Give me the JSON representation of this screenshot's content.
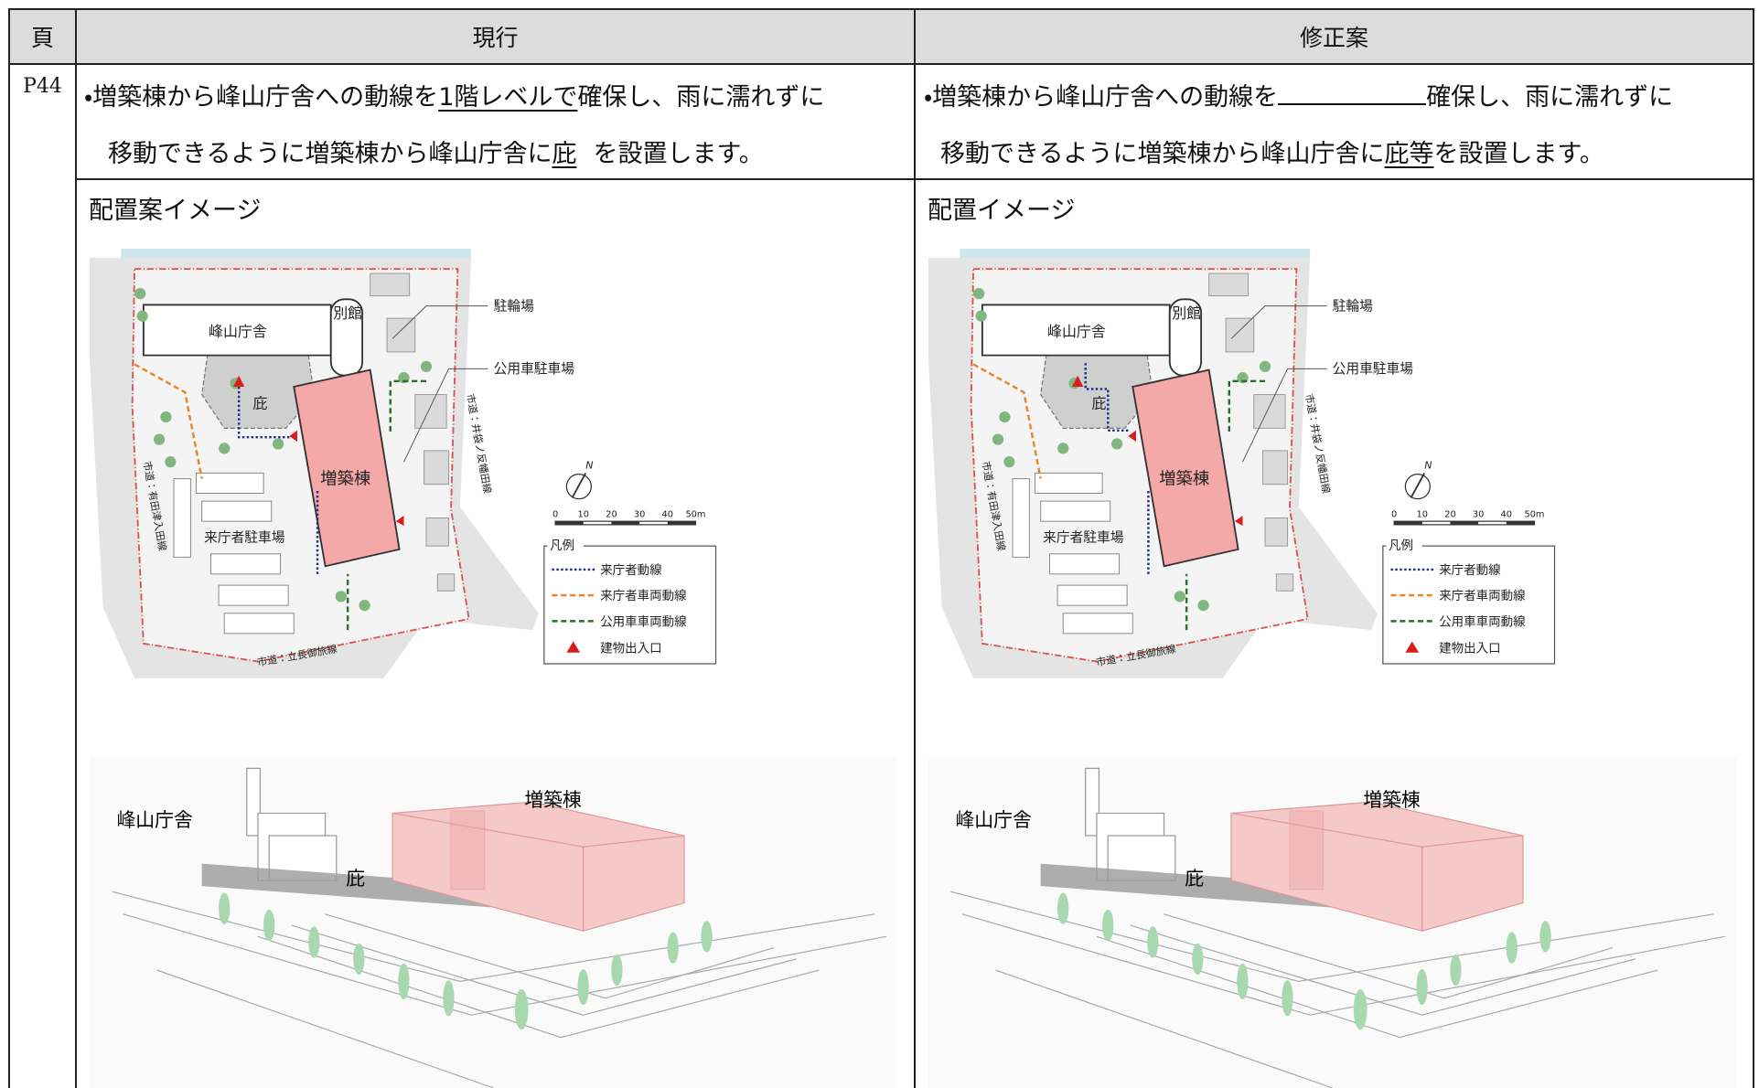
{
  "header": {
    "page": "頁",
    "current": "現行",
    "revised": "修正案"
  },
  "row": {
    "page": "P44",
    "current": {
      "line1": {
        "before": "・増築棟から峰山庁舎への動線を",
        "underlined": "1階レベルで",
        "after": "確保し、雨に濡れずに"
      },
      "line2": {
        "before": "移動できるように増築棟から峰山庁舎に",
        "underlined": "庇",
        "after": "を設置します。"
      },
      "caption": "配置案イメージ"
    },
    "revised": {
      "line1": {
        "before": "・増築棟から峰山庁舎への動線を",
        "after": "確保し、雨に濡れずに"
      },
      "line2": {
        "before": "移動できるように増築棟から峰山庁舎に",
        "underlined": "庇等",
        "after": "を設置します。"
      },
      "caption": "配置イメージ"
    }
  },
  "site_plan": {
    "labels": {
      "main_building": "峰山庁舎",
      "annex": "別館",
      "canopy": "庇",
      "extension": "増築棟",
      "visitor_parking": "来庁者駐車場",
      "bicycle_parking": "駐輪場",
      "official_parking": "公用車駐車場"
    },
    "road_labels": {
      "east": "市道：井袋ノ反幡田線",
      "west": "市道：有田津入田線",
      "south": "市道：立長御旅線"
    },
    "compass": "N",
    "scale_ticks": [
      "0",
      "10",
      "20",
      "30",
      "40",
      "50m"
    ],
    "legend": {
      "title": "凡例",
      "items": [
        "来庁者動線",
        "来庁者車両動線",
        "公用車車両動線",
        "建物出入口"
      ]
    }
  },
  "perspective": {
    "labels": {
      "main_building": "峰山庁舎",
      "extension": "増築棟",
      "canopy": "庇"
    }
  }
}
